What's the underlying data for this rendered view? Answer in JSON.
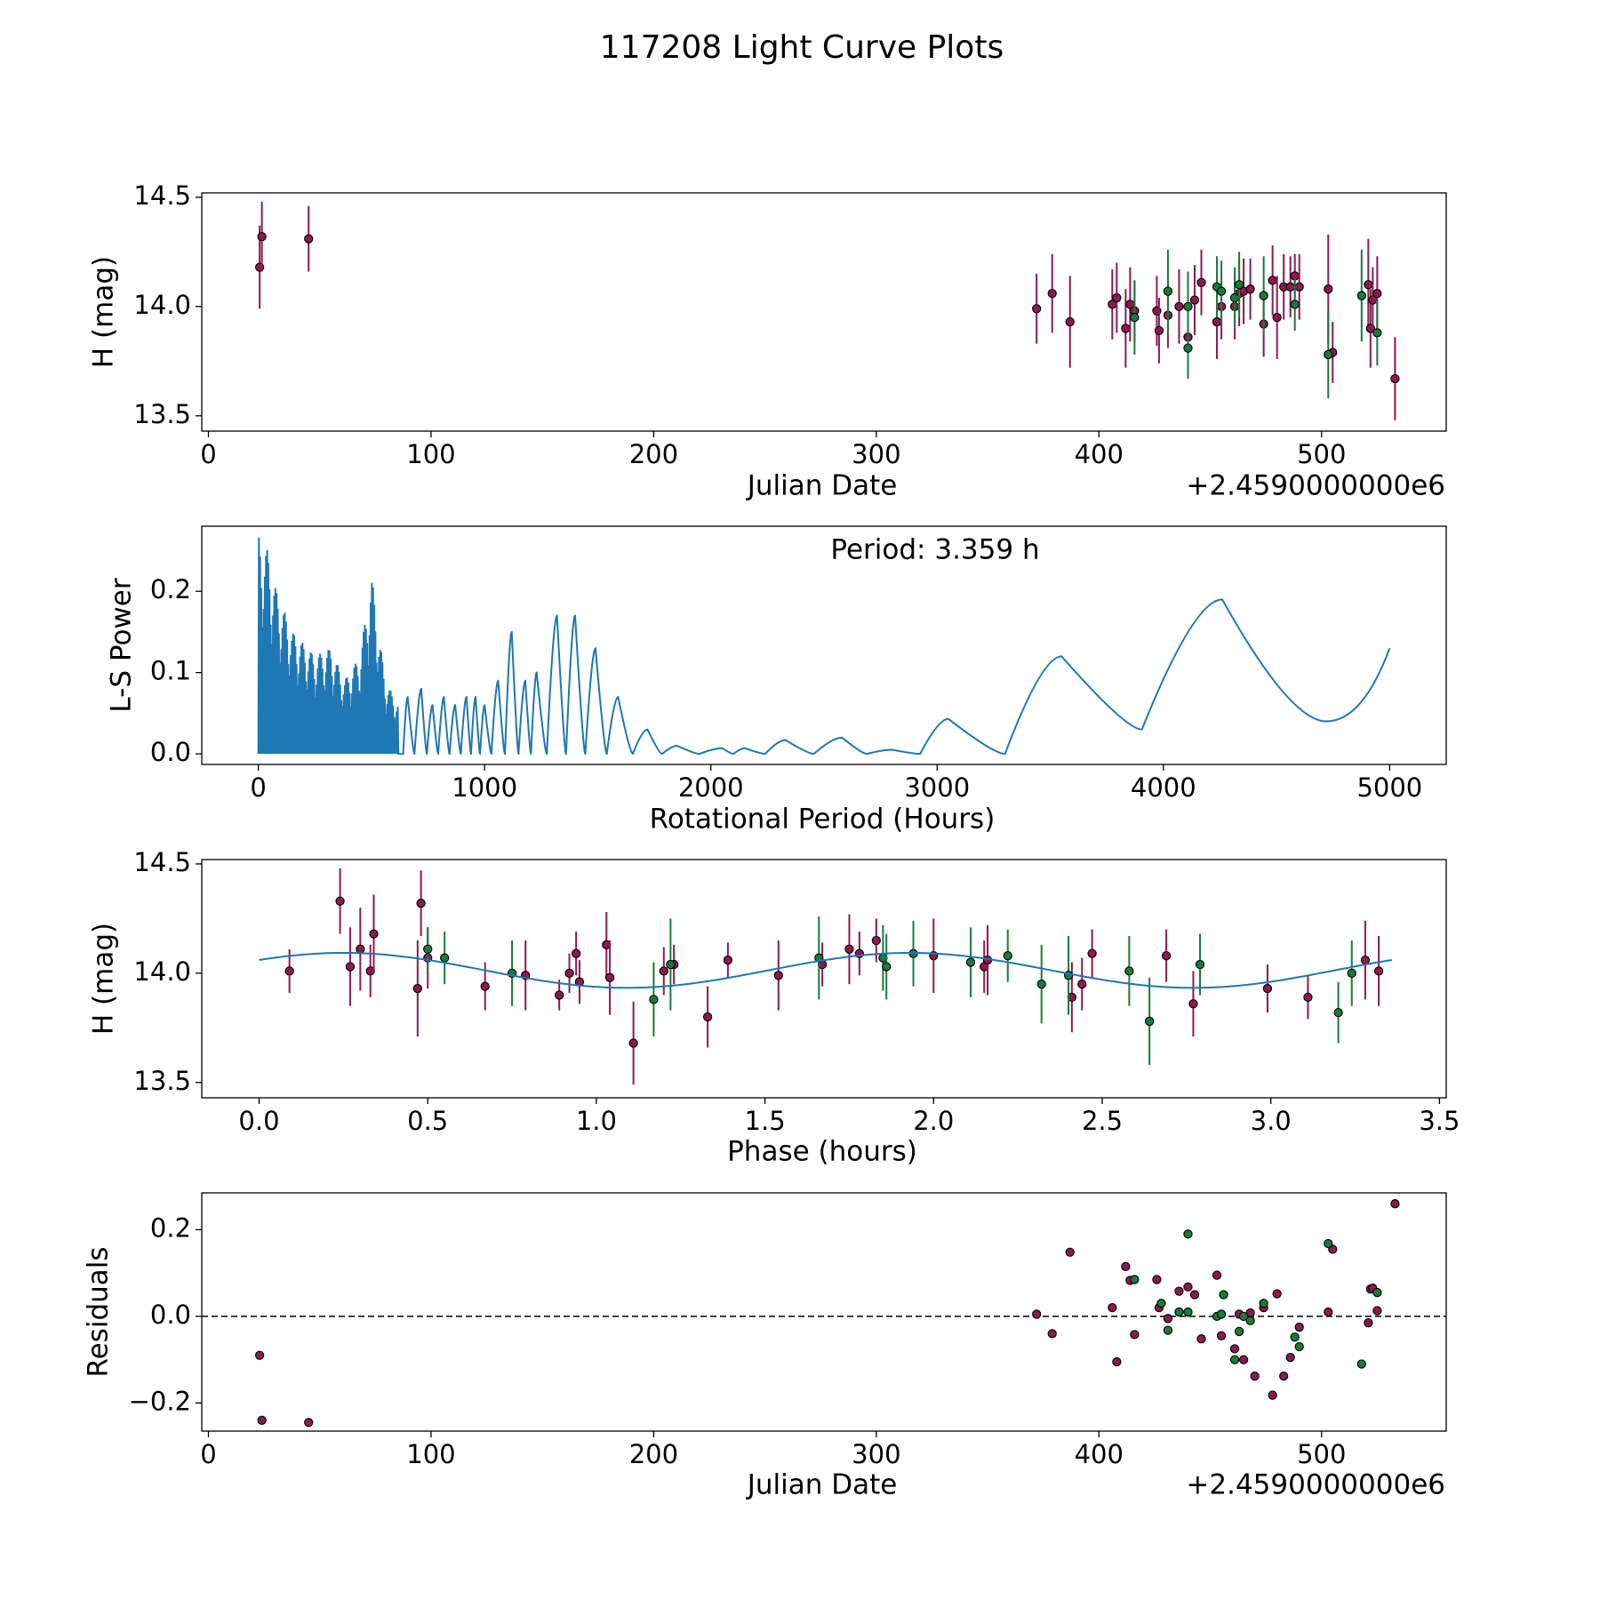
{
  "title": "117208 Light Curve Plots",
  "colors": {
    "purple": "#8b1a4f",
    "green": "#1a7a3c",
    "blue": "#1f77b4",
    "marker_edge": "#000000",
    "axis": "#000000"
  },
  "chart_data": [
    {
      "id": "lightcurve",
      "type": "scatter",
      "xlabel": "Julian Date",
      "ylabel": "H (mag)",
      "offset_label": "+2.4590000000e6",
      "xlim": [
        -3,
        556
      ],
      "ylim": [
        13.43,
        14.52
      ],
      "xticks": [
        0,
        100,
        200,
        300,
        400,
        500
      ],
      "xtick_labels": [
        "0",
        "100",
        "200",
        "300",
        "400",
        "500"
      ],
      "yticks": [
        13.5,
        14.0,
        14.5
      ],
      "ytick_labels": [
        "13.5",
        "14.0",
        "14.5"
      ],
      "series": [
        {
          "name": "purple",
          "points": [
            [
              23,
              14.18,
              0.19
            ],
            [
              24,
              14.32,
              0.16
            ],
            [
              45,
              14.31,
              0.15
            ],
            [
              372,
              13.99,
              0.16
            ],
            [
              379,
              14.06,
              0.18
            ],
            [
              387,
              13.93,
              0.21
            ],
            [
              406,
              14.01,
              0.16
            ],
            [
              408,
              14.04,
              0.16
            ],
            [
              412,
              13.9,
              0.18
            ],
            [
              414,
              14.01,
              0.17
            ],
            [
              416,
              13.98,
              0.14
            ],
            [
              426,
              13.98,
              0.16
            ],
            [
              427,
              13.89,
              0.15
            ],
            [
              431,
              13.96,
              0.15
            ],
            [
              436,
              14.0,
              0.17
            ],
            [
              440,
              13.86,
              0.16
            ],
            [
              443,
              14.03,
              0.16
            ],
            [
              446,
              14.11,
              0.15
            ],
            [
              453,
              13.93,
              0.17
            ],
            [
              455,
              14.0,
              0.15
            ],
            [
              461,
              14.0,
              0.15
            ],
            [
              463,
              14.06,
              0.15
            ],
            [
              465,
              14.07,
              0.15
            ],
            [
              468,
              14.08,
              0.14
            ],
            [
              474,
              13.92,
              0.15
            ],
            [
              478,
              14.12,
              0.16
            ],
            [
              480,
              13.95,
              0.19
            ],
            [
              483,
              14.09,
              0.15
            ],
            [
              486,
              14.09,
              0.14
            ],
            [
              488,
              14.14,
              0.1
            ],
            [
              490,
              14.09,
              0.15
            ],
            [
              503,
              14.08,
              0.25
            ],
            [
              505,
              13.79,
              0.14
            ],
            [
              521,
              14.1,
              0.21
            ],
            [
              522,
              13.9,
              0.18
            ],
            [
              523,
              14.03,
              0.15
            ],
            [
              525,
              14.06,
              0.17
            ],
            [
              533,
              13.67,
              0.19
            ]
          ]
        },
        {
          "name": "green",
          "points": [
            [
              416,
              13.95,
              0.17
            ],
            [
              431,
              14.07,
              0.19
            ],
            [
              440,
              14.0,
              0.16
            ],
            [
              440,
              13.81,
              0.14
            ],
            [
              453,
              14.09,
              0.14
            ],
            [
              455,
              14.07,
              0.14
            ],
            [
              461,
              14.04,
              0.14
            ],
            [
              463,
              14.1,
              0.15
            ],
            [
              474,
              14.05,
              0.18
            ],
            [
              488,
              14.01,
              0.12
            ],
            [
              503,
              13.78,
              0.2
            ],
            [
              518,
              14.05,
              0.21
            ],
            [
              525,
              13.88,
              0.15
            ]
          ]
        }
      ]
    },
    {
      "id": "periodogram",
      "type": "line",
      "xlabel": "Rotational Period (Hours)",
      "ylabel": "L-S Power",
      "annotation": "Period: 3.359 h",
      "xlim": [
        -250,
        5250
      ],
      "ylim": [
        -0.013,
        0.28
      ],
      "xticks": [
        0,
        1000,
        2000,
        3000,
        4000,
        5000
      ],
      "xtick_labels": [
        "0",
        "1000",
        "2000",
        "3000",
        "4000",
        "5000"
      ],
      "yticks": [
        0.0,
        0.1,
        0.2
      ],
      "ytick_labels": [
        "0.0",
        "0.1",
        "0.2"
      ],
      "envelope_x": [
        0,
        40,
        80,
        150,
        250,
        320,
        380,
        450,
        500,
        560,
        620
      ],
      "envelope_y": [
        0.27,
        0.25,
        0.2,
        0.15,
        0.12,
        0.13,
        0.09,
        0.12,
        0.22,
        0.09,
        0.06
      ],
      "peaks_x": [
        660,
        720,
        770,
        820,
        870,
        920,
        960,
        1000,
        1060,
        1120,
        1180,
        1230,
        1320,
        1400,
        1490,
        1590,
        1720,
        1850,
        2050,
        2150,
        2330,
        2580,
        2800,
        3050,
        3550,
        4260
      ],
      "peaks_y": [
        0.07,
        0.08,
        0.06,
        0.07,
        0.06,
        0.07,
        0.07,
        0.06,
        0.09,
        0.15,
        0.09,
        0.1,
        0.17,
        0.17,
        0.13,
        0.07,
        0.03,
        0.01,
        0.007,
        0.007,
        0.017,
        0.02,
        0.005,
        0.043,
        0.12,
        0.19
      ],
      "valleys_x": [
        4720,
        5000
      ],
      "valleys_y": [
        0.04,
        0.13
      ]
    },
    {
      "id": "phased",
      "type": "scatter",
      "xlabel": "Phase (hours)",
      "ylabel": "H (mag)",
      "xlim": [
        -0.17,
        3.52
      ],
      "ylim": [
        13.43,
        14.52
      ],
      "xticks": [
        0.0,
        0.5,
        1.0,
        1.5,
        2.0,
        2.5,
        3.0,
        3.5
      ],
      "xtick_labels": [
        "0.0",
        "0.5",
        "1.0",
        "1.5",
        "2.0",
        "2.5",
        "3.0",
        "3.5"
      ],
      "yticks": [
        13.5,
        14.0,
        14.5
      ],
      "ytick_labels": [
        "13.5",
        "14.0",
        "14.5"
      ],
      "fit": {
        "mean": 14.013,
        "amplitude": 0.08,
        "period": 3.359,
        "peak_phase": 0.25,
        "harmonic": 2
      },
      "series": [
        {
          "name": "purple",
          "points": [
            [
              0.09,
              14.01,
              0.1
            ],
            [
              0.24,
              14.33,
              0.15
            ],
            [
              0.27,
              14.03,
              0.18
            ],
            [
              0.3,
              14.11,
              0.19
            ],
            [
              0.33,
              14.01,
              0.12
            ],
            [
              0.34,
              14.18,
              0.18
            ],
            [
              0.47,
              13.93,
              0.22
            ],
            [
              0.48,
              14.32,
              0.15
            ],
            [
              0.5,
              14.07,
              0.14
            ],
            [
              0.67,
              13.94,
              0.11
            ],
            [
              0.79,
              13.99,
              0.16
            ],
            [
              0.89,
              13.9,
              0.07
            ],
            [
              0.92,
              14.0,
              0.09
            ],
            [
              0.94,
              14.09,
              0.1
            ],
            [
              0.95,
              13.96,
              0.1
            ],
            [
              1.03,
              14.13,
              0.15
            ],
            [
              1.04,
              13.98,
              0.17
            ],
            [
              1.11,
              13.68,
              0.19
            ],
            [
              1.2,
              14.01,
              0.11
            ],
            [
              1.23,
              14.04,
              0.09
            ],
            [
              1.33,
              13.8,
              0.14
            ],
            [
              1.39,
              14.06,
              0.08
            ],
            [
              1.54,
              13.99,
              0.16
            ],
            [
              1.67,
              14.04,
              0.1
            ],
            [
              1.75,
              14.11,
              0.16
            ],
            [
              1.78,
              14.09,
              0.1
            ],
            [
              1.83,
              14.15,
              0.1
            ],
            [
              2.0,
              14.08,
              0.17
            ],
            [
              2.15,
              14.03,
              0.12
            ],
            [
              2.16,
              14.06,
              0.16
            ],
            [
              2.41,
              13.89,
              0.16
            ],
            [
              2.44,
              13.95,
              0.12
            ],
            [
              2.47,
              14.09,
              0.11
            ],
            [
              2.69,
              14.08,
              0.12
            ],
            [
              2.77,
              13.86,
              0.15
            ],
            [
              2.99,
              13.93,
              0.11
            ],
            [
              3.11,
              13.89,
              0.1
            ],
            [
              3.28,
              14.06,
              0.18
            ],
            [
              3.32,
              14.01,
              0.16
            ]
          ]
        },
        {
          "name": "green",
          "points": [
            [
              0.5,
              14.11,
              0.1
            ],
            [
              0.55,
              14.07,
              0.12
            ],
            [
              0.75,
              14.0,
              0.15
            ],
            [
              1.17,
              13.88,
              0.17
            ],
            [
              1.22,
              14.04,
              0.21
            ],
            [
              1.66,
              14.07,
              0.19
            ],
            [
              1.85,
              14.07,
              0.15
            ],
            [
              1.86,
              14.03,
              0.15
            ],
            [
              1.94,
              14.09,
              0.15
            ],
            [
              2.11,
              14.05,
              0.16
            ],
            [
              2.22,
              14.08,
              0.12
            ],
            [
              2.32,
              13.95,
              0.18
            ],
            [
              2.4,
              13.99,
              0.18
            ],
            [
              2.58,
              14.01,
              0.16
            ],
            [
              2.64,
              13.78,
              0.2
            ],
            [
              2.79,
              14.04,
              0.14
            ],
            [
              3.2,
              13.82,
              0.14
            ],
            [
              3.24,
              14.0,
              0.15
            ]
          ]
        }
      ]
    },
    {
      "id": "residuals",
      "type": "scatter",
      "xlabel": "Julian Date",
      "ylabel": "Residuals",
      "offset_label": "+2.4590000000e6",
      "xlim": [
        -3,
        556
      ],
      "ylim": [
        -0.265,
        0.285
      ],
      "zero_line": 0.0,
      "xticks": [
        0,
        100,
        200,
        300,
        400,
        500
      ],
      "xtick_labels": [
        "0",
        "100",
        "200",
        "300",
        "400",
        "500"
      ],
      "yticks": [
        -0.2,
        0.0,
        0.2
      ],
      "ytick_labels": [
        "−0.2",
        "0.0",
        "0.2"
      ],
      "series": [
        {
          "name": "purple",
          "points": [
            [
              23,
              -0.09
            ],
            [
              24,
              -0.24
            ],
            [
              45,
              -0.245
            ],
            [
              372,
              0.005
            ],
            [
              379,
              -0.04
            ],
            [
              387,
              0.148
            ],
            [
              406,
              0.02
            ],
            [
              408,
              -0.105
            ],
            [
              412,
              0.115
            ],
            [
              414,
              0.083
            ],
            [
              416,
              -0.042
            ],
            [
              426,
              0.085
            ],
            [
              427,
              0.02
            ],
            [
              431,
              -0.005
            ],
            [
              436,
              0.058
            ],
            [
              440,
              0.068
            ],
            [
              443,
              0.05
            ],
            [
              446,
              -0.052
            ],
            [
              453,
              0.095
            ],
            [
              455,
              -0.045
            ],
            [
              461,
              -0.075
            ],
            [
              463,
              0.005
            ],
            [
              465,
              -0.1
            ],
            [
              468,
              0.008
            ],
            [
              470,
              -0.138
            ],
            [
              474,
              0.02
            ],
            [
              478,
              -0.182
            ],
            [
              480,
              0.052
            ],
            [
              483,
              -0.138
            ],
            [
              486,
              -0.095
            ],
            [
              490,
              -0.025
            ],
            [
              503,
              0.01
            ],
            [
              505,
              0.155
            ],
            [
              521,
              -0.015
            ],
            [
              522,
              0.063
            ],
            [
              523,
              0.065
            ],
            [
              525,
              0.013
            ],
            [
              533,
              0.26
            ]
          ]
        },
        {
          "name": "green",
          "points": [
            [
              416,
              0.085
            ],
            [
              428,
              0.03
            ],
            [
              431,
              -0.032
            ],
            [
              436,
              0.01
            ],
            [
              440,
              0.01
            ],
            [
              440,
              0.19
            ],
            [
              453,
              0.0
            ],
            [
              455,
              0.005
            ],
            [
              456,
              0.05
            ],
            [
              461,
              -0.1
            ],
            [
              463,
              -0.035
            ],
            [
              465,
              0.0
            ],
            [
              468,
              -0.01
            ],
            [
              474,
              0.03
            ],
            [
              488,
              -0.048
            ],
            [
              490,
              -0.07
            ],
            [
              503,
              0.168
            ],
            [
              518,
              -0.11
            ],
            [
              525,
              0.055
            ]
          ]
        }
      ]
    }
  ]
}
